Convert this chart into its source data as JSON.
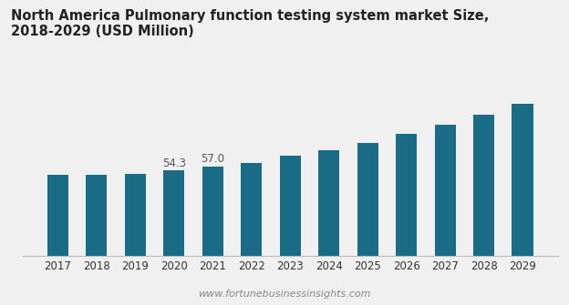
{
  "title": "North America Pulmonary function testing system market Size, 2018-2029 (USD Million)",
  "categories": [
    "2017",
    "2018",
    "2019",
    "2020",
    "2021",
    "2022",
    "2023",
    "2024",
    "2025",
    "2026",
    "2027",
    "2028",
    "2029"
  ],
  "values": [
    51.5,
    51.8,
    52.2,
    54.3,
    57.0,
    59.0,
    63.5,
    67.5,
    72.0,
    77.5,
    83.5,
    90.0,
    97.0
  ],
  "bar_color": "#1a6b85",
  "annotated_indices": [
    3,
    4
  ],
  "annotated_labels": [
    "54.3",
    "57.0"
  ],
  "watermark": "www.fortunebusinessinsights.com",
  "plot_bg_color": "#f0f0f0",
  "fig_bg_color": "#f0f0f0",
  "title_fontsize": 10.5,
  "annotation_fontsize": 8.5,
  "watermark_fontsize": 8,
  "tick_fontsize": 8.5,
  "ylim_min": 0,
  "ylim_max": 120,
  "bar_width": 0.55
}
